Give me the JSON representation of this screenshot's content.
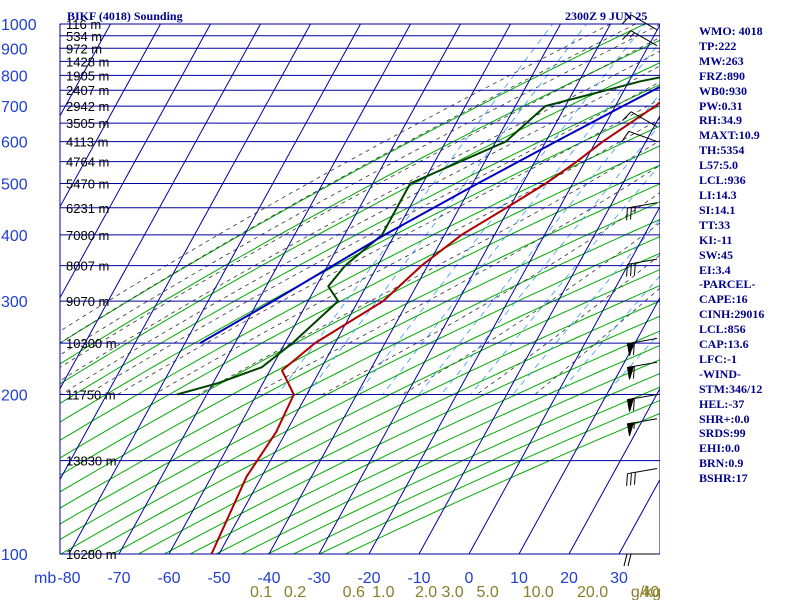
{
  "header": {
    "title": "BIKF (4018) Sounding",
    "valid_time": "2300Z  9 JUN 25"
  },
  "colors": {
    "frame": "#0000a0",
    "isotherm": "#0000a0",
    "dry_adiabat": "#00aa00",
    "moist_adiabat": "#333333",
    "mixing_ratio": "#3399ff",
    "temperature": "#b00000",
    "dewpoint": "#004400",
    "parcel": "#0000c0",
    "wind_barb": "#000000"
  },
  "indices": [
    "WMO: 4018",
    "TP:222",
    "MW:263",
    "FRZ:890",
    "WB0:930",
    "PW:0.31",
    "RH:34.9",
    "MAXT:10.9",
    "TH:5354",
    "L57:5.0",
    "LCL:936",
    "LI:14.3",
    "SI:14.1",
    "TT:33",
    "KI:-11",
    "SW:45",
    "EI:3.4",
    "-PARCEL-",
    "CAPE:16",
    "CINH:29016",
    "LCL:856",
    "CAP:13.6",
    "LFC:-1",
    "-WIND-",
    "STM:346/12",
    "HEL:-37",
    "SHR+:0.0",
    "SRDS:99",
    "EHI:0.0",
    "BRN:0.9",
    "BSHR:17"
  ],
  "chart_data": {
    "type": "skew-t",
    "title": "BIKF (4018) Sounding",
    "subtitle": "2300Z  9 JUN 25",
    "ylabel": "mb",
    "y_scale": "log-pressure",
    "ylim": [
      1000,
      100
    ],
    "xlim": [
      -80,
      40
    ],
    "pressure_ticks": [
      100,
      200,
      300,
      400,
      500,
      600,
      700,
      800,
      900,
      1000
    ],
    "temperature_ticks": [
      -80,
      -70,
      -60,
      -50,
      -40,
      -30,
      -20,
      -10,
      0,
      10,
      20,
      30,
      40
    ],
    "temperature_tick_labels": [
      "mb",
      "-80",
      "-70",
      "-60",
      "-50",
      "-40",
      "-30",
      "-20",
      "-10",
      "0",
      "10",
      "20",
      "30",
      "40"
    ],
    "mixing_ratio_labels": [
      "0.1",
      "0.2",
      "0.6",
      "1.0",
      "2.0",
      "3.0",
      "5.0",
      "10.0",
      "20.0",
      "40",
      "g/kg"
    ],
    "mixing_ratio_values": [
      0.1,
      0.2,
      0.6,
      1.0,
      2.0,
      3.0,
      5.0,
      10.0,
      20.0,
      40.0
    ],
    "heights": [
      {
        "p": 1000,
        "label": "116 m"
      },
      {
        "p": 950,
        "label": "534 m"
      },
      {
        "p": 900,
        "label": "972 m"
      },
      {
        "p": 850,
        "label": "1428 m"
      },
      {
        "p": 800,
        "label": "1905 m"
      },
      {
        "p": 750,
        "label": "2407 m"
      },
      {
        "p": 700,
        "label": "2942 m"
      },
      {
        "p": 650,
        "label": "3505 m"
      },
      {
        "p": 600,
        "label": "4113 m"
      },
      {
        "p": 550,
        "label": "4764 m"
      },
      {
        "p": 500,
        "label": "5470 m"
      },
      {
        "p": 450,
        "label": "6231 m"
      },
      {
        "p": 400,
        "label": "7080 m"
      },
      {
        "p": 350,
        "label": "8007 m"
      },
      {
        "p": 300,
        "label": "9070 m"
      },
      {
        "p": 250,
        "label": "10300 m"
      },
      {
        "p": 200,
        "label": "11750 m"
      },
      {
        "p": 150,
        "label": "13830 m"
      },
      {
        "p": 100,
        "label": "16280 m"
      }
    ],
    "series": [
      {
        "name": "temperature",
        "points": [
          {
            "p": 990,
            "t": 4.8
          },
          {
            "p": 960,
            "t": 3.8
          },
          {
            "p": 925,
            "t": 0.0
          },
          {
            "p": 900,
            "t": -2.2
          },
          {
            "p": 850,
            "t": -6.0
          },
          {
            "p": 800,
            "t": -8.6
          },
          {
            "p": 760,
            "t": -9.6
          },
          {
            "p": 700,
            "t": -12.0
          },
          {
            "p": 600,
            "t": -18.6
          },
          {
            "p": 550,
            "t": -21.6
          },
          {
            "p": 500,
            "t": -25.4
          },
          {
            "p": 450,
            "t": -30.6
          },
          {
            "p": 400,
            "t": -36.6
          },
          {
            "p": 350,
            "t": -41.2
          },
          {
            "p": 300,
            "t": -45.0
          },
          {
            "p": 250,
            "t": -54.0
          },
          {
            "p": 222,
            "t": -57.6
          },
          {
            "p": 200,
            "t": -52.6
          },
          {
            "p": 170,
            "t": -52.0
          },
          {
            "p": 140,
            "t": -53.0
          },
          {
            "p": 100,
            "t": -51.5
          }
        ]
      },
      {
        "name": "dewpoint",
        "points": [
          {
            "p": 990,
            "t": 0.0
          },
          {
            "p": 965,
            "t": -0.2
          },
          {
            "p": 960,
            "t": -8.5
          },
          {
            "p": 940,
            "t": -6.8
          },
          {
            "p": 900,
            "t": -6.4
          },
          {
            "p": 850,
            "t": -8.8
          },
          {
            "p": 820,
            "t": -10.0
          },
          {
            "p": 800,
            "t": -12.5
          },
          {
            "p": 780,
            "t": -17.6
          },
          {
            "p": 700,
            "t": -34.0
          },
          {
            "p": 600,
            "t": -38.0
          },
          {
            "p": 500,
            "t": -52.5
          },
          {
            "p": 400,
            "t": -52.5
          },
          {
            "p": 350,
            "t": -56.5
          },
          {
            "p": 320,
            "t": -57.6
          },
          {
            "p": 300,
            "t": -54.0
          },
          {
            "p": 250,
            "t": -58.5
          },
          {
            "p": 225,
            "t": -62.0
          },
          {
            "p": 210,
            "t": -69.0
          },
          {
            "p": 200,
            "t": -76.0
          }
        ]
      },
      {
        "name": "parcel",
        "points": [
          {
            "p": 975,
            "t": 5.6
          },
          {
            "p": 900,
            "t": -1.8
          },
          {
            "p": 856,
            "t": -5.7
          },
          {
            "p": 800,
            "t": -10.0
          },
          {
            "p": 700,
            "t": -18.5
          },
          {
            "p": 600,
            "t": -28.0
          },
          {
            "p": 500,
            "t": -39.0
          },
          {
            "p": 400,
            "t": -52.0
          },
          {
            "p": 300,
            "t": -67.0
          },
          {
            "p": 250,
            "t": -77.0
          }
        ]
      }
    ],
    "wind_barbs": [
      {
        "p": 975,
        "dir": 300,
        "speed_kt": 10
      },
      {
        "p": 910,
        "dir": 300,
        "speed_kt": 15
      },
      {
        "p": 640,
        "dir": 300,
        "speed_kt": 10
      },
      {
        "p": 600,
        "dir": 290,
        "speed_kt": 10
      },
      {
        "p": 460,
        "dir": 260,
        "speed_kt": 25
      },
      {
        "p": 360,
        "dir": 260,
        "speed_kt": 30
      },
      {
        "p": 255,
        "dir": 260,
        "speed_kt": 60
      },
      {
        "p": 230,
        "dir": 260,
        "speed_kt": 60
      },
      {
        "p": 200,
        "dir": 260,
        "speed_kt": 60
      },
      {
        "p": 180,
        "dir": 260,
        "speed_kt": 55
      },
      {
        "p": 145,
        "dir": 260,
        "speed_kt": 30
      },
      {
        "p": 100,
        "dir": 270,
        "speed_kt": 20
      }
    ],
    "grid": true
  }
}
